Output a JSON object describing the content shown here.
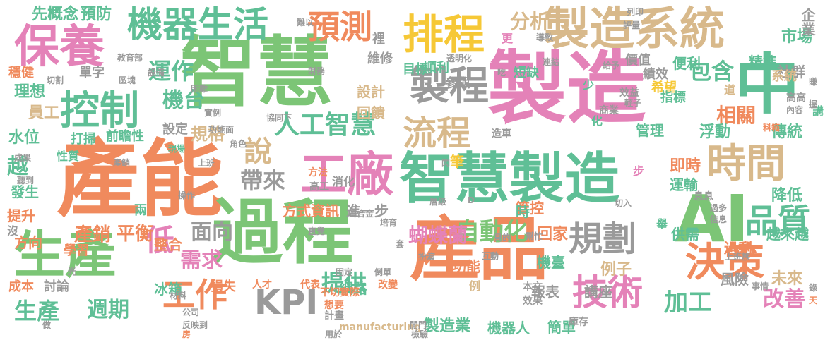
{
  "palette": {
    "pink": "#e482b8",
    "orange": "#f08a5d",
    "green": "#7cc576",
    "teal": "#5fbf96",
    "yellow": "#f6c836",
    "tan": "#d8b98b",
    "gray": "#9a9a9a"
  },
  "words": [
    {
      "text": "製造",
      "color": "pink"
    },
    {
      "text": "產能",
      "color": "orange"
    },
    {
      "text": "智慧",
      "color": "green"
    },
    {
      "text": "過程",
      "color": "green"
    },
    {
      "text": "產品",
      "color": "orange"
    },
    {
      "text": "中",
      "color": "teal"
    },
    {
      "text": "AI",
      "color": "green"
    },
    {
      "text": "智慧製造",
      "color": "teal"
    },
    {
      "text": "製造系統",
      "color": "tan"
    },
    {
      "text": "保養",
      "color": "pink"
    },
    {
      "text": "機器生活",
      "color": "teal"
    },
    {
      "text": "排程",
      "color": "yellow"
    },
    {
      "text": "生產",
      "color": "green"
    },
    {
      "text": "控制",
      "color": "teal"
    },
    {
      "text": "工廠",
      "color": "pink"
    },
    {
      "text": "製程",
      "color": "gray"
    },
    {
      "text": "預測",
      "color": "orange"
    },
    {
      "text": "時間",
      "color": "tan"
    },
    {
      "text": "決策",
      "color": "orange"
    },
    {
      "text": "技術",
      "color": "pink"
    },
    {
      "text": "品質",
      "color": "teal"
    },
    {
      "text": "規劃",
      "color": "gray"
    },
    {
      "text": "工作",
      "color": "orange"
    },
    {
      "text": "KPI",
      "color": "gray"
    },
    {
      "text": "流程",
      "color": "tan"
    },
    {
      "text": "說",
      "color": "tan"
    },
    {
      "text": "人工智慧",
      "color": "teal"
    },
    {
      "text": "運作",
      "color": "teal"
    },
    {
      "text": "機台",
      "color": "teal"
    },
    {
      "text": "帶來",
      "color": "gray"
    },
    {
      "text": "低",
      "color": "pink"
    },
    {
      "text": "自動化",
      "color": "green"
    },
    {
      "text": "需求",
      "color": "pink"
    },
    {
      "text": "提供",
      "color": "teal"
    },
    {
      "text": "加工",
      "color": "teal"
    },
    {
      "text": "改善",
      "color": "pink"
    },
    {
      "text": "生產",
      "color": "teal"
    },
    {
      "text": "週期",
      "color": "teal"
    },
    {
      "text": "面向",
      "color": "gray"
    },
    {
      "text": "包含",
      "color": "teal"
    },
    {
      "text": "分析",
      "color": "tan"
    },
    {
      "text": "相關",
      "color": "orange"
    },
    {
      "text": "蝴蝶蘭",
      "color": "pink"
    },
    {
      "text": "平衡",
      "color": "orange"
    },
    {
      "text": "產銷",
      "color": "orange"
    },
    {
      "text": "規格",
      "color": "tan"
    },
    {
      "text": "例子",
      "color": "tan"
    },
    {
      "text": "越",
      "color": "teal"
    },
    {
      "text": "先概念",
      "color": "teal"
    },
    {
      "text": "預防",
      "color": "teal"
    },
    {
      "text": "市場",
      "color": "teal"
    },
    {
      "text": "企業",
      "color": "gray"
    },
    {
      "text": "社群",
      "color": "gray"
    },
    {
      "text": "便利",
      "color": "teal"
    },
    {
      "text": "精準",
      "color": "teal"
    },
    {
      "text": "系統",
      "color": "tan"
    },
    {
      "text": "理想",
      "color": "teal"
    },
    {
      "text": "員工",
      "color": "tan"
    },
    {
      "text": "水位",
      "color": "teal"
    },
    {
      "text": "設計",
      "color": "tan"
    },
    {
      "text": "回饋",
      "color": "tan"
    },
    {
      "text": "運輸",
      "color": "teal"
    },
    {
      "text": "即時",
      "color": "orange"
    },
    {
      "text": "浮動",
      "color": "teal"
    },
    {
      "text": "傳統",
      "color": "teal"
    },
    {
      "text": "降低",
      "color": "teal"
    },
    {
      "text": "未來",
      "color": "tan"
    },
    {
      "text": "風險",
      "color": "gray"
    },
    {
      "text": "報表",
      "color": "gray"
    },
    {
      "text": "講座",
      "color": "gray"
    },
    {
      "text": "方式",
      "color": "orange"
    },
    {
      "text": "資訊",
      "color": "orange"
    },
    {
      "text": "進一步",
      "color": "gray"
    },
    {
      "text": "網路",
      "color": "teal"
    },
    {
      "text": "機器人",
      "color": "teal"
    },
    {
      "text": "簡單",
      "color": "teal"
    },
    {
      "text": "製造業",
      "color": "teal"
    },
    {
      "text": "manufacturing",
      "color": "tan"
    },
    {
      "text": "損失",
      "color": "orange"
    },
    {
      "text": "冰箱",
      "color": "teal"
    },
    {
      "text": "整合",
      "color": "orange"
    },
    {
      "text": "方向",
      "color": "orange"
    },
    {
      "text": "發生",
      "color": "teal"
    },
    {
      "text": "提升",
      "color": "orange"
    },
    {
      "text": "前瞻性",
      "color": "teal"
    },
    {
      "text": "設定",
      "color": "gray"
    },
    {
      "text": "性質",
      "color": "teal"
    },
    {
      "text": "打掃",
      "color": "teal"
    },
    {
      "text": "機臺",
      "color": "teal"
    },
    {
      "text": "管控",
      "color": "orange"
    },
    {
      "text": "功能",
      "color": "orange"
    },
    {
      "text": "管理",
      "color": "teal"
    },
    {
      "text": "回家",
      "color": "orange"
    },
    {
      "text": "供需",
      "color": "teal"
    },
    {
      "text": "過剩",
      "color": "orange"
    },
    {
      "text": "越來越",
      "color": "teal"
    },
    {
      "text": "希望",
      "color": "yellow"
    },
    {
      "text": "績效",
      "color": "gray"
    },
    {
      "text": "指標",
      "color": "teal"
    },
    {
      "text": "參與",
      "color": "gray"
    },
    {
      "text": "順利",
      "color": "teal"
    },
    {
      "text": "目標",
      "color": "teal"
    },
    {
      "text": "維修",
      "color": "gray"
    },
    {
      "text": "裡",
      "color": "gray"
    },
    {
      "text": "短缺",
      "color": "teal"
    },
    {
      "text": "價值",
      "color": "gray"
    },
    {
      "text": "消化",
      "color": "gray"
    },
    {
      "text": "穩健",
      "color": "orange"
    },
    {
      "text": "單字",
      "color": "gray"
    },
    {
      "text": "成本",
      "color": "orange"
    },
    {
      "text": "討論",
      "color": "gray"
    },
    {
      "text": "學習",
      "color": "orange"
    },
    {
      "text": "兩",
      "color": "teal"
    },
    {
      "text": "沒",
      "color": "gray"
    },
    {
      "text": "時",
      "color": "teal"
    },
    {
      "text": "筆",
      "color": "yellow"
    },
    {
      "text": "少",
      "color": "teal"
    },
    {
      "text": "化",
      "color": "teal"
    },
    {
      "text": "道",
      "color": "tan"
    },
    {
      "text": "講",
      "color": "teal"
    },
    {
      "text": "例",
      "color": "tan"
    },
    {
      "text": "更",
      "color": "pink"
    },
    {
      "text": "舉",
      "color": "teal"
    },
    {
      "text": "步",
      "color": "pink"
    },
    {
      "text": "息息",
      "color": "gray"
    },
    {
      "text": "改變",
      "color": "orange"
    },
    {
      "text": "代表",
      "color": "orange"
    },
    {
      "text": "人才",
      "color": "orange"
    },
    {
      "text": "不切實際",
      "color": "orange"
    },
    {
      "text": "想要",
      "color": "orange"
    },
    {
      "text": "計畫",
      "color": "gray"
    },
    {
      "text": "本文",
      "color": "gray"
    },
    {
      "text": "效果",
      "color": "gray"
    },
    {
      "text": "庫存",
      "color": "gray"
    },
    {
      "text": "效益",
      "color": "gray"
    },
    {
      "text": "商業",
      "color": "gray"
    },
    {
      "text": "方法",
      "color": "orange"
    },
    {
      "text": "高工",
      "color": "gray"
    },
    {
      "text": "現場",
      "color": "teal"
    },
    {
      "text": "功能面",
      "color": "gray"
    },
    {
      "text": "協同下",
      "color": "gray"
    },
    {
      "text": "實例",
      "color": "gray"
    },
    {
      "text": "角色",
      "color": "gray"
    },
    {
      "text": "層級",
      "color": "gray"
    },
    {
      "text": "造車",
      "color": "gray"
    },
    {
      "text": "扮演",
      "color": "gray"
    },
    {
      "text": "直覺",
      "color": "gray"
    },
    {
      "text": "培育",
      "color": "gray"
    },
    {
      "text": "鑄合金",
      "color": "gray"
    },
    {
      "text": "幫忙",
      "color": "gray"
    },
    {
      "text": "互動",
      "color": "gray"
    },
    {
      "text": "上班族",
      "color": "gray"
    },
    {
      "text": "事情",
      "color": "gray"
    },
    {
      "text": "公司",
      "color": "gray"
    },
    {
      "text": "材料",
      "color": "gray"
    },
    {
      "text": "反映到",
      "color": "gray"
    },
    {
      "text": "閒門",
      "color": "gray"
    },
    {
      "text": "用於",
      "color": "gray"
    },
    {
      "text": "檢驗",
      "color": "gray"
    },
    {
      "text": "固定",
      "color": "gray"
    },
    {
      "text": "倒單",
      "color": "gray"
    },
    {
      "text": "切入",
      "color": "gray"
    },
    {
      "text": "過多",
      "color": "gray"
    },
    {
      "text": "信息",
      "color": "gray"
    },
    {
      "text": "連結",
      "color": "gray"
    },
    {
      "text": "給予",
      "color": "gray"
    },
    {
      "text": "輕子",
      "color": "gray"
    },
    {
      "text": "高高",
      "color": "gray"
    },
    {
      "text": "內容",
      "color": "gray"
    },
    {
      "text": "料箱",
      "color": "orange"
    },
    {
      "text": "列印",
      "color": "gray"
    },
    {
      "text": "評量",
      "color": "gray"
    },
    {
      "text": "導致",
      "color": "gray"
    },
    {
      "text": "透明化",
      "color": "gray"
    },
    {
      "text": "吃",
      "color": "gray"
    },
    {
      "text": "切割",
      "color": "gray"
    },
    {
      "text": "區塊",
      "color": "gray"
    },
    {
      "text": "教育部",
      "color": "gray"
    },
    {
      "text": "設備",
      "color": "gray"
    },
    {
      "text": "成果",
      "color": "gray"
    },
    {
      "text": "聽到",
      "color": "gray"
    },
    {
      "text": "產銷",
      "color": "gray"
    },
    {
      "text": "上班",
      "color": "gray"
    },
    {
      "text": "財務",
      "color": "gray"
    },
    {
      "text": "困難",
      "color": "gray"
    },
    {
      "text": "光",
      "color": "gray"
    },
    {
      "text": "操作",
      "color": "gray"
    },
    {
      "text": "做",
      "color": "gray"
    },
    {
      "text": "賺",
      "color": "gray"
    },
    {
      "text": "握",
      "color": "gray"
    },
    {
      "text": "錄",
      "color": "gray"
    },
    {
      "text": "天",
      "color": "orange"
    },
    {
      "text": "房",
      "color": "orange"
    },
    {
      "text": "套",
      "color": "gray"
    },
    {
      "text": "難以",
      "color": "gray"
    },
    {
      "text": "閃",
      "color": "gray"
    },
    {
      "text": "D",
      "color": "gray"
    },
    {
      "text": "貝的",
      "color": "gray"
    }
  ]
}
